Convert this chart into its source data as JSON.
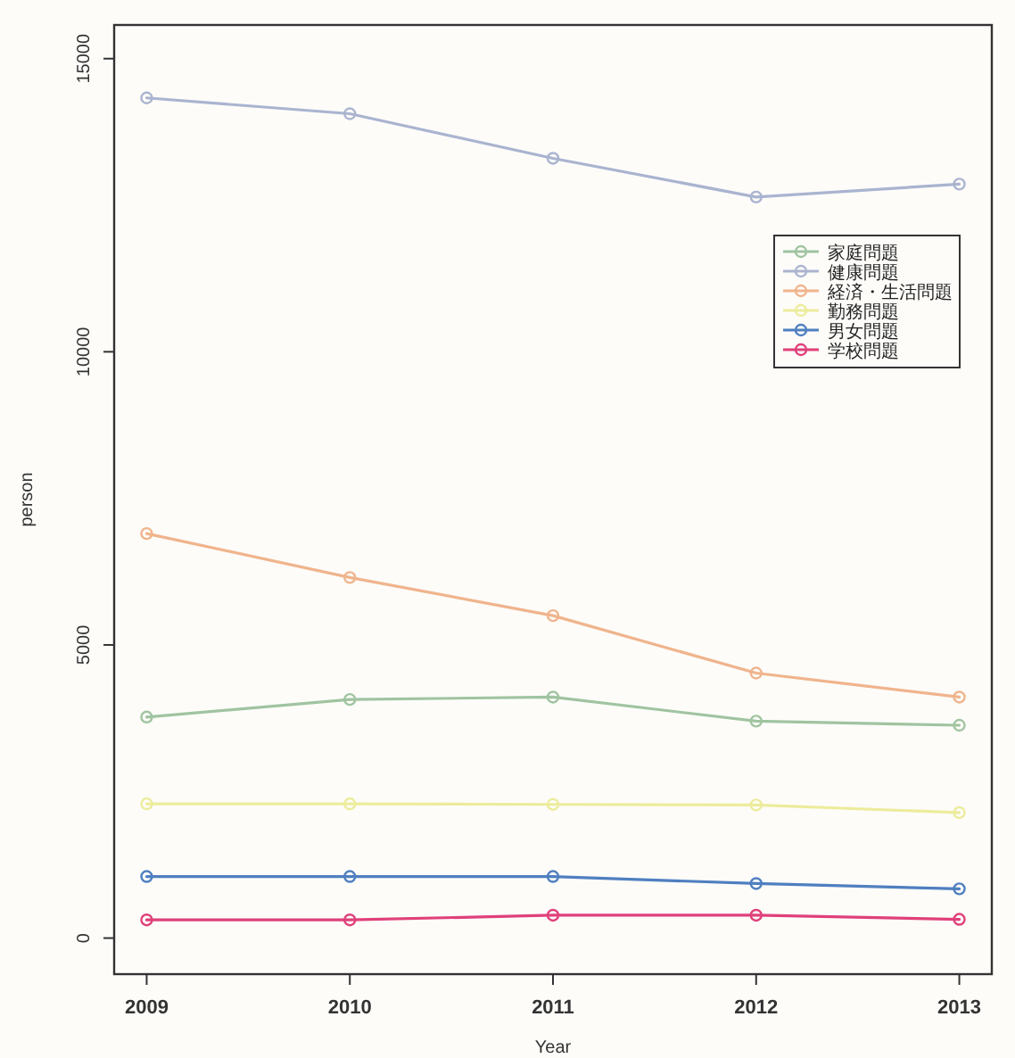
{
  "chart_data": {
    "type": "line",
    "xlabel": "Year",
    "ylabel": "person",
    "x": [
      2009,
      2010,
      2011,
      2012,
      2013
    ],
    "xlim": [
      2008.84,
      2013.16
    ],
    "xticks": [
      2009,
      2010,
      2011,
      2012,
      2013
    ],
    "ylim": [
      -615,
      15574
    ],
    "yticks": [
      0,
      5000,
      10000,
      15000
    ],
    "marker": "circle",
    "line_style": "solid",
    "legend": "top right",
    "series": [
      {
        "name": "家庭問題",
        "color": "#a0c4a0",
        "values": [
          3770,
          4070,
          4110,
          3700,
          3630
        ]
      },
      {
        "name": "健康問題",
        "color": "#aab4d0",
        "values": [
          14330,
          14060,
          13300,
          12640,
          12860
        ]
      },
      {
        "name": "経済・生活問題",
        "color": "#f0b48c",
        "values": [
          6900,
          6150,
          5500,
          4520,
          4110
        ]
      },
      {
        "name": "勤務問題",
        "color": "#ecec9c",
        "values": [
          2290,
          2290,
          2280,
          2270,
          2140
        ]
      },
      {
        "name": "男女問題",
        "color": "#4f7fc0",
        "values": [
          1050,
          1050,
          1050,
          930,
          840
        ]
      },
      {
        "name": "学校問題",
        "color": "#e0407a",
        "values": [
          310,
          310,
          390,
          390,
          320
        ]
      }
    ]
  }
}
